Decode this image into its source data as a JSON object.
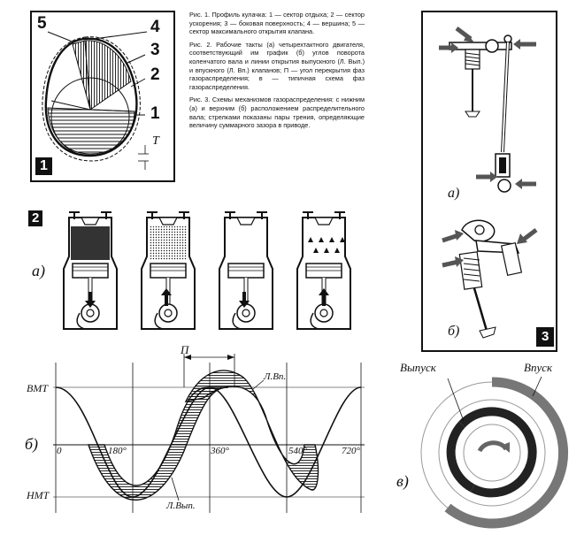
{
  "fig1": {
    "labels": [
      "5",
      "4",
      "3",
      "2",
      "1"
    ],
    "gap_label": "T",
    "badge": "1"
  },
  "captions": [
    "Рис. 1. Профиль кулачка: 1 — сектор отдыха; 2 — сектор ускорения; 3 — боковая поверхность; 4 — вершина; 5 — сектор максимального открытия клапана.",
    "Рис. 2. Рабочие такты (а) четырехтактного двигателя, соответствующий им график (б) углов поворота коленчатого вала и линии открытия выпускного (Л. Вып.) и впускного (Л. Вп.) клапанов; П — угол перекрытия фаз газораспределения; в — типичная схема фаз газораспределения.",
    "Рис. 3. Схемы механизмов газораспределения: с нижним (а) и верхним (б) расположением распределительного вала; стрелками показаны пары трения, определяющие величину суммарного зазора в приводе."
  ],
  "fig2": {
    "badge": "2",
    "sub_a": "а)",
    "sub_b": "б)",
    "sub_c": "в)"
  },
  "fig3": {
    "badge": "3",
    "sub_a": "а)",
    "sub_b": "б)"
  },
  "graph": {
    "top_label": "ВМТ",
    "bottom_label": "НМТ",
    "overlap_label": "П",
    "intake_line_label": "Л.Вп.",
    "exhaust_line_label": "Л.Вып.",
    "ticks": [
      "0",
      "180°",
      "360°",
      "540°",
      "720°"
    ]
  },
  "phase_diagram": {
    "exhaust_label": "Выпуск",
    "intake_label": "Впуск"
  }
}
